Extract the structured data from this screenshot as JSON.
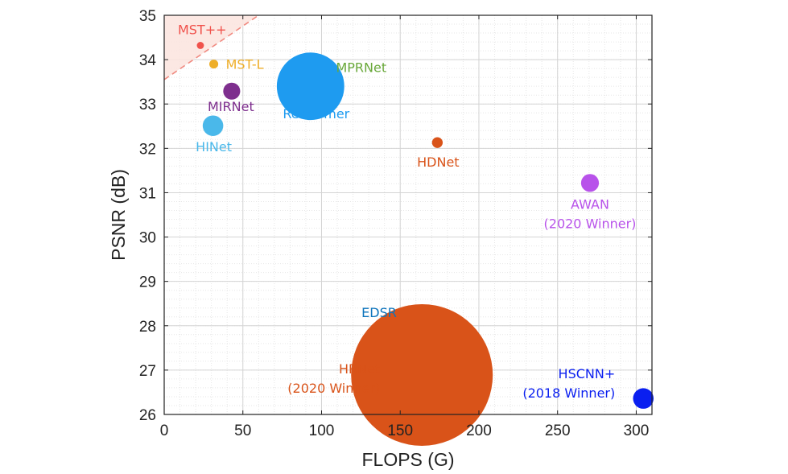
{
  "chart_data": {
    "type": "scatter",
    "xlabel": "FLOPS (G)",
    "ylabel": "PSNR (dB)",
    "xlim": [
      0,
      310
    ],
    "ylim": [
      26,
      35
    ],
    "xticks": [
      0,
      50,
      100,
      150,
      200,
      250,
      300
    ],
    "yticks": [
      26,
      27,
      28,
      29,
      30,
      31,
      32,
      33,
      34,
      35
    ],
    "grid": true,
    "points": [
      {
        "label": [
          "MST++"
        ],
        "x": 23,
        "y": 34.32,
        "size": 1.6,
        "color": "#f0524c"
      },
      {
        "label": [
          "MST-L"
        ],
        "x": 31.5,
        "y": 33.9,
        "size": 2.0,
        "color": "#eeae28"
      },
      {
        "label": [
          "MPRNet"
        ],
        "x": 101,
        "y": 33.5,
        "size": 3.6,
        "color": "#69a83a"
      },
      {
        "label": [
          "Restormer"
        ],
        "x": 93,
        "y": 33.4,
        "size": 15.1,
        "color": "#1e9bf0"
      },
      {
        "label": [
          "MIRNet"
        ],
        "x": 42.9,
        "y": 33.29,
        "size": 3.8,
        "color": "#7e2f8e"
      },
      {
        "label": [
          "HINet"
        ],
        "x": 31,
        "y": 32.51,
        "size": 4.6,
        "color": "#4ab8ea"
      },
      {
        "label": [
          "HDNet"
        ],
        "x": 173.6,
        "y": 32.13,
        "size": 2.4,
        "color": "#d95319"
      },
      {
        "label": [
          "AWAN",
          "(2020 Winner)"
        ],
        "x": 270.6,
        "y": 31.22,
        "size": 4.0,
        "color": "#b852ea"
      },
      {
        "label": [
          "EDSR"
        ],
        "x": 158,
        "y": 28.29,
        "size": 2.4,
        "color": "#0d74bc"
      },
      {
        "label": [
          "HRNet",
          "(2020 Winner)"
        ],
        "x": 163.8,
        "y": 26.89,
        "size": 31.7,
        "color": "#d95319"
      },
      {
        "label": [
          "HSCNN+",
          "(2018 Winner)"
        ],
        "x": 304.5,
        "y": 26.36,
        "size": 4.6,
        "color": "#0a1ff0"
      }
    ]
  }
}
